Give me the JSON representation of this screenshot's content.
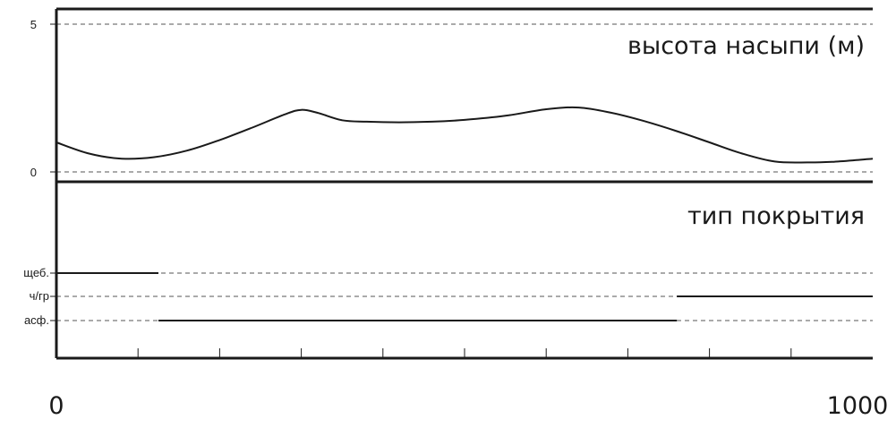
{
  "chart_data": [
    {
      "type": "line",
      "title": "высота насыпи (м)",
      "xlim": [
        0,
        1000
      ],
      "ylim": [
        -0.35,
        5.5
      ],
      "yticks": [
        {
          "value": 5,
          "label": "5"
        },
        {
          "value": 0,
          "label": "0"
        }
      ],
      "grid": true,
      "series": [
        {
          "x": [
            0,
            40,
            80,
            120,
            160,
            200,
            240,
            280,
            300,
            320,
            350,
            380,
            420,
            460,
            500,
            550,
            600,
            640,
            680,
            720,
            760,
            800,
            840,
            880,
            920,
            950,
            980,
            1000
          ],
          "y": [
            1.0,
            0.62,
            0.45,
            0.5,
            0.72,
            1.08,
            1.5,
            1.95,
            2.1,
            2.0,
            1.75,
            1.7,
            1.68,
            1.7,
            1.76,
            1.9,
            2.12,
            2.18,
            2.0,
            1.72,
            1.38,
            1.0,
            0.62,
            0.35,
            0.32,
            0.34,
            0.4,
            0.45
          ]
        }
      ]
    },
    {
      "type": "line",
      "title": "тип покрытия",
      "xlim": [
        0,
        1000
      ],
      "categories": [
        "щеб.",
        "ч/гр",
        "асф."
      ],
      "grid": true,
      "segments": [
        {
          "category": "щеб.",
          "x_start": 0,
          "x_end": 125
        },
        {
          "category": "асф.",
          "x_start": 125,
          "x_end": 760
        },
        {
          "category": "ч/гр",
          "x_start": 760,
          "x_end": 1000
        }
      ]
    }
  ],
  "x_axis": {
    "min_label": "0",
    "max_label": "1000",
    "minor_ticks": [
      100,
      200,
      300,
      400,
      500,
      600,
      700,
      800,
      900
    ]
  }
}
